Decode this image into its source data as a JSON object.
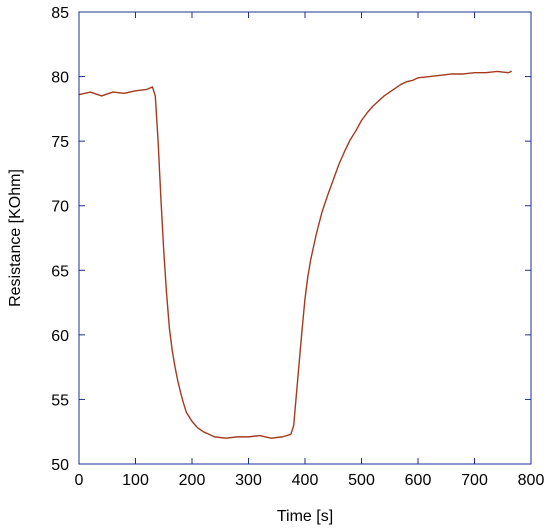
{
  "chart_data": {
    "type": "line",
    "title": "",
    "xlabel": "Time [s]",
    "ylabel": "Resistance [KOhm]",
    "xlim": [
      0,
      800
    ],
    "ylim": [
      50,
      85
    ],
    "x_ticks": [
      0,
      100,
      200,
      300,
      400,
      500,
      600,
      700,
      800
    ],
    "y_ticks": [
      50,
      55,
      60,
      65,
      70,
      75,
      80,
      85
    ],
    "x_tick_labels": [
      "0",
      "100",
      "200",
      "300",
      "400",
      "500",
      "600",
      "700",
      "800"
    ],
    "y_tick_labels": [
      "50",
      "55",
      "60",
      "65",
      "70",
      "75",
      "80",
      "85"
    ],
    "grid": false,
    "legend": "none",
    "series": [
      {
        "color": "#a33a1f",
        "x": [
          0,
          20,
          40,
          60,
          80,
          100,
          120,
          130,
          135,
          140,
          145,
          150,
          155,
          160,
          165,
          170,
          175,
          180,
          185,
          190,
          200,
          210,
          220,
          230,
          240,
          260,
          280,
          300,
          320,
          340,
          360,
          375,
          380,
          385,
          390,
          395,
          400,
          405,
          410,
          420,
          430,
          440,
          450,
          460,
          470,
          480,
          490,
          500,
          510,
          520,
          530,
          540,
          550,
          560,
          570,
          580,
          590,
          600,
          620,
          640,
          660,
          680,
          700,
          720,
          740,
          760,
          765
        ],
        "y": [
          78.6,
          78.8,
          78.5,
          78.8,
          78.7,
          78.9,
          79.0,
          79.2,
          78.5,
          75.0,
          70.5,
          66.5,
          63.2,
          60.5,
          58.8,
          57.5,
          56.4,
          55.5,
          54.7,
          54.0,
          53.3,
          52.8,
          52.5,
          52.3,
          52.1,
          52.0,
          52.1,
          52.1,
          52.2,
          52.0,
          52.1,
          52.3,
          53.0,
          55.5,
          58.0,
          60.5,
          62.8,
          64.5,
          65.8,
          67.8,
          69.5,
          70.8,
          72.0,
          73.2,
          74.2,
          75.1,
          75.8,
          76.6,
          77.2,
          77.7,
          78.1,
          78.5,
          78.8,
          79.1,
          79.4,
          79.6,
          79.7,
          79.9,
          80.0,
          80.1,
          80.2,
          80.2,
          80.3,
          80.3,
          80.4,
          80.3,
          80.4
        ]
      }
    ]
  }
}
